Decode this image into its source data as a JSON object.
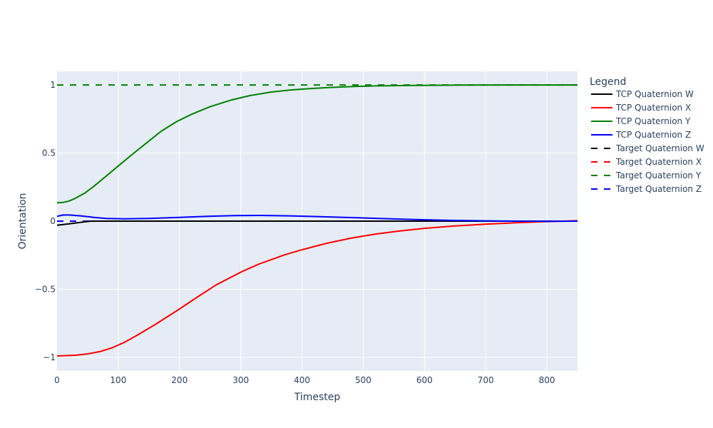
{
  "chart_data": {
    "type": "line",
    "xlabel": "Timestep",
    "ylabel": "Orientation",
    "xlim": [
      0,
      850
    ],
    "ylim": [
      -1.1,
      1.1
    ],
    "x_ticks": [
      0,
      100,
      200,
      300,
      400,
      500,
      600,
      700,
      800
    ],
    "y_ticks": [
      -1,
      -0.5,
      0,
      0.5,
      1
    ],
    "y_tick_labels": [
      "−1",
      "−0.5",
      "0",
      "0.5",
      "1"
    ],
    "grid": true,
    "legend_title": "Legend",
    "legend_position": "right",
    "plot_background": "#e5ecf6",
    "series": [
      {
        "name": "TCP Quaternion W",
        "color": "#000000",
        "dash": "solid",
        "x": [
          0,
          20,
          40,
          55,
          80,
          150,
          300,
          500,
          850
        ],
        "y": [
          -0.03,
          -0.02,
          -0.008,
          0.0,
          0.0,
          0.0,
          0.0,
          0.0,
          0.0
        ]
      },
      {
        "name": "TCP Quaternion X",
        "color": "#ff0000",
        "dash": "solid",
        "x": [
          0,
          30,
          50,
          70,
          90,
          110,
          130,
          160,
          200,
          230,
          260,
          300,
          330,
          370,
          400,
          440,
          480,
          520,
          560,
          600,
          650,
          700,
          750,
          800,
          850
        ],
        "y": [
          -0.99,
          -0.985,
          -0.975,
          -0.958,
          -0.93,
          -0.89,
          -0.84,
          -0.76,
          -0.645,
          -0.555,
          -0.468,
          -0.375,
          -0.315,
          -0.25,
          -0.21,
          -0.163,
          -0.125,
          -0.095,
          -0.072,
          -0.053,
          -0.035,
          -0.022,
          -0.012,
          -0.003,
          0.003
        ]
      },
      {
        "name": "TCP Quaternion Y",
        "color": "#008000",
        "dash": "solid",
        "x": [
          0,
          10,
          20,
          30,
          45,
          60,
          80,
          100,
          120,
          145,
          170,
          195,
          220,
          250,
          285,
          315,
          350,
          380,
          410,
          440,
          480,
          520,
          580,
          650,
          750,
          850
        ],
        "y": [
          0.135,
          0.137,
          0.148,
          0.168,
          0.205,
          0.255,
          0.33,
          0.405,
          0.48,
          0.57,
          0.66,
          0.73,
          0.785,
          0.84,
          0.89,
          0.922,
          0.948,
          0.962,
          0.972,
          0.98,
          0.988,
          0.993,
          0.997,
          0.999,
          1.0,
          1.0
        ]
      },
      {
        "name": "TCP Quaternion Z",
        "color": "#0000ff",
        "dash": "solid",
        "x": [
          0,
          10,
          20,
          40,
          60,
          80,
          110,
          150,
          200,
          250,
          290,
          330,
          380,
          420,
          480,
          540,
          600,
          650,
          700,
          750,
          800,
          850
        ],
        "y": [
          0.035,
          0.045,
          0.045,
          0.038,
          0.028,
          0.02,
          0.017,
          0.02,
          0.028,
          0.036,
          0.041,
          0.042,
          0.039,
          0.034,
          0.026,
          0.018,
          0.01,
          0.005,
          0.002,
          0.0,
          -0.001,
          0.0
        ]
      },
      {
        "name": "Target Quaternion W",
        "color": "#000000",
        "dash": "dash",
        "x": [
          0,
          850
        ],
        "y": [
          0.0,
          0.0
        ]
      },
      {
        "name": "Target Quaternion X",
        "color": "#ff0000",
        "dash": "dash",
        "x": [
          0,
          850
        ],
        "y": [
          0.0,
          0.0
        ]
      },
      {
        "name": "Target Quaternion Y",
        "color": "#008000",
        "dash": "dash",
        "x": [
          0,
          850
        ],
        "y": [
          1.0,
          1.0
        ]
      },
      {
        "name": "Target Quaternion Z",
        "color": "#0000ff",
        "dash": "dash",
        "x": [
          0,
          850
        ],
        "y": [
          0.0,
          0.0
        ]
      }
    ]
  }
}
